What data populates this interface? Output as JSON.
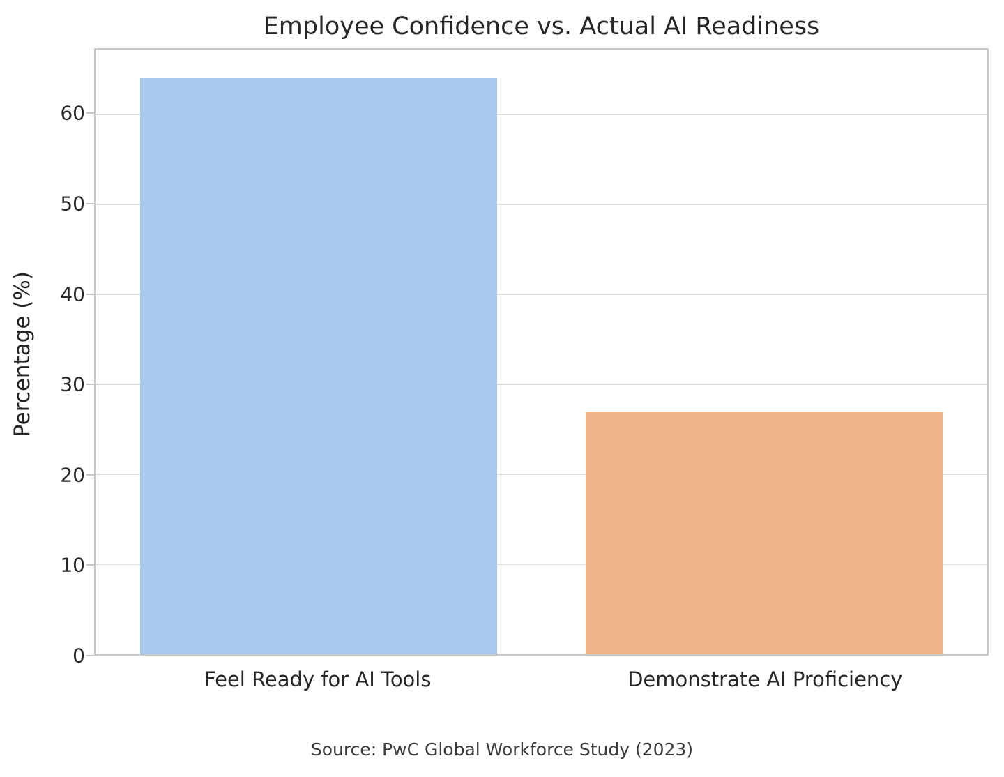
{
  "chart_data": {
    "type": "bar",
    "title": "Employee Confidence vs. Actual AI Readiness",
    "xlabel": "",
    "ylabel": "Percentage (%)",
    "categories": [
      "Feel Ready for AI Tools",
      "Demonstrate AI Proficiency"
    ],
    "values": [
      64,
      27
    ],
    "bar_colors": [
      "#a9c8ec",
      "#f0b48d"
    ],
    "ylim": [
      0,
      67.2
    ],
    "yticks": [
      0,
      10,
      20,
      30,
      40,
      50,
      60
    ],
    "grid": "horizontal-only",
    "legend": "none",
    "source_note": "Source: PwC Global Workforce Study (2023)"
  },
  "colors": {
    "text": "#262626",
    "grid": "#dcdcdc",
    "frame": "#c8c8c8",
    "background": "#ffffff"
  }
}
